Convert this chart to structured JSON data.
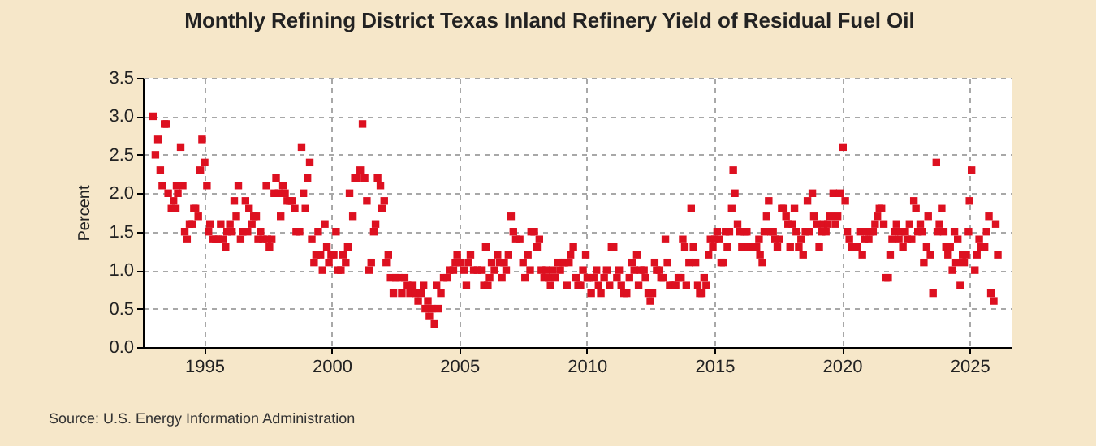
{
  "chart_data": {
    "type": "scatter",
    "title": "Monthly Refining District Texas Inland Refinery Yield of Residual Fuel Oil",
    "ylabel": "Percent",
    "annotations": [
      "Source: U.S. Energy Information Administration"
    ],
    "x": [
      1993.0,
      1993.09,
      1993.19,
      1993.28,
      1993.36,
      1993.45,
      1993.53,
      1993.59,
      1993.72,
      1993.8,
      1993.89,
      1993.92,
      1993.97,
      1994.08,
      1994.16,
      1994.24,
      1994.33,
      1994.43,
      1994.54,
      1994.6,
      1994.66,
      1994.77,
      1994.85,
      1994.92,
      1995.02,
      1995.11,
      1995.17,
      1995.23,
      1995.36,
      1995.46,
      1995.57,
      1995.65,
      1995.74,
      1995.84,
      1995.9,
      1996.01,
      1996.09,
      1996.18,
      1996.26,
      1996.34,
      1996.43,
      1996.51,
      1996.62,
      1996.7,
      1996.76,
      1996.87,
      1996.95,
      1997.04,
      1997.12,
      1997.21,
      1997.31,
      1997.44,
      1997.48,
      1997.56,
      1997.65,
      1997.75,
      1997.82,
      1997.92,
      1998.0,
      1998.09,
      1998.17,
      1998.26,
      1998.36,
      1998.45,
      1998.55,
      1998.61,
      1998.74,
      1998.82,
      1998.89,
      1998.97,
      1999.05,
      1999.14,
      1999.22,
      1999.31,
      1999.39,
      1999.47,
      1999.56,
      1999.64,
      1999.73,
      1999.81,
      1999.89,
      1999.98,
      2000.08,
      2000.17,
      2000.25,
      2000.36,
      2000.44,
      2000.55,
      2000.63,
      2000.7,
      2000.83,
      2000.91,
      2001.0,
      2001.12,
      2001.21,
      2001.29,
      2001.38,
      2001.46,
      2001.55,
      2001.65,
      2001.72,
      2001.8,
      2001.91,
      2001.97,
      2002.06,
      2002.14,
      2002.22,
      2002.31,
      2002.42,
      2002.52,
      2002.65,
      2002.75,
      2002.86,
      2002.97,
      2003.07,
      2003.18,
      2003.28,
      2003.39,
      2003.5,
      2003.6,
      2003.67,
      2003.77,
      2003.83,
      2003.92,
      2004.03,
      2004.11,
      2004.19,
      2004.28,
      2004.39,
      2004.53,
      2004.62,
      2004.77,
      2004.85,
      2004.92,
      2005.02,
      2005.19,
      2005.28,
      2005.36,
      2005.44,
      2005.57,
      2005.72,
      2005.89,
      2005.97,
      2006.04,
      2006.12,
      2006.19,
      2006.27,
      2006.38,
      2006.5,
      2006.59,
      2006.67,
      2006.76,
      2006.84,
      2006.93,
      2007.03,
      2007.12,
      2007.22,
      2007.37,
      2007.5,
      2007.58,
      2007.69,
      2007.78,
      2007.82,
      2007.94,
      2008.05,
      2008.14,
      2008.22,
      2008.33,
      2008.41,
      2008.5,
      2008.58,
      2008.67,
      2008.77,
      2008.88,
      2008.96,
      2009.05,
      2009.13,
      2009.22,
      2009.3,
      2009.36,
      2009.47,
      2009.58,
      2009.66,
      2009.75,
      2009.85,
      2009.96,
      2010.02,
      2010.08,
      2010.17,
      2010.27,
      2010.38,
      2010.46,
      2010.55,
      2010.68,
      2010.78,
      2010.89,
      2010.97,
      2011.05,
      2011.18,
      2011.27,
      2011.35,
      2011.46,
      2011.56,
      2011.67,
      2011.77,
      2011.86,
      2011.96,
      2012.03,
      2012.11,
      2012.24,
      2012.3,
      2012.41,
      2012.49,
      2012.57,
      2012.66,
      2012.74,
      2012.85,
      2012.91,
      2013.0,
      2013.08,
      2013.16,
      2013.25,
      2013.38,
      2013.48,
      2013.59,
      2013.69,
      2013.76,
      2013.84,
      2013.9,
      2014.01,
      2014.09,
      2014.18,
      2014.26,
      2014.35,
      2014.43,
      2014.51,
      2014.6,
      2014.68,
      2014.77,
      2014.85,
      2014.94,
      2015.02,
      2015.11,
      2015.19,
      2015.27,
      2015.36,
      2015.44,
      2015.51,
      2015.59,
      2015.68,
      2015.74,
      2015.8,
      2015.91,
      2015.99,
      2016.08,
      2016.18,
      2016.27,
      2016.35,
      2016.43,
      2016.54,
      2016.65,
      2016.75,
      2016.79,
      2016.88,
      2016.96,
      2017.05,
      2017.13,
      2017.22,
      2017.3,
      2017.38,
      2017.47,
      2017.55,
      2017.64,
      2017.72,
      2017.81,
      2017.89,
      2017.97,
      2018.06,
      2018.14,
      2018.21,
      2018.31,
      2018.4,
      2018.48,
      2018.57,
      2018.65,
      2018.73,
      2018.84,
      2018.9,
      2019.01,
      2019.11,
      2019.2,
      2019.28,
      2019.37,
      2019.45,
      2019.54,
      2019.66,
      2019.75,
      2019.83,
      2019.92,
      2020.04,
      2020.13,
      2020.21,
      2020.29,
      2020.38,
      2020.46,
      2020.59,
      2020.71,
      2020.8,
      2020.88,
      2020.97,
      2021.05,
      2021.13,
      2021.22,
      2021.3,
      2021.39,
      2021.47,
      2021.55,
      2021.64,
      2021.72,
      2021.81,
      2021.89,
      2021.97,
      2022.06,
      2022.14,
      2022.23,
      2022.31,
      2022.39,
      2022.48,
      2022.56,
      2022.65,
      2022.73,
      2022.82,
      2022.9,
      2022.98,
      2023.07,
      2023.15,
      2023.21,
      2023.32,
      2023.38,
      2023.47,
      2023.57,
      2023.7,
      2023.74,
      2023.82,
      2023.91,
      2023.99,
      2024.08,
      2024.16,
      2024.24,
      2024.33,
      2024.41,
      2024.47,
      2024.54,
      2024.64,
      2024.73,
      2024.79,
      2024.87,
      2024.96,
      2025.0,
      2025.08,
      2025.21,
      2025.29,
      2025.38,
      2025.46,
      2025.59,
      2025.67,
      2025.76,
      2025.84,
      2025.95,
      2026.03,
      2026.11
    ],
    "series": [
      {
        "color": "#dd1020",
        "values": [
          3.0,
          2.5,
          2.7,
          2.3,
          2.1,
          2.9,
          2.9,
          2.0,
          1.8,
          1.9,
          1.8,
          2.1,
          2.0,
          2.6,
          2.1,
          1.5,
          1.4,
          1.6,
          1.6,
          1.8,
          1.8,
          1.7,
          2.3,
          2.7,
          2.4,
          2.1,
          1.5,
          1.6,
          1.4,
          1.4,
          1.4,
          1.6,
          1.4,
          1.3,
          1.5,
          1.6,
          1.5,
          1.9,
          1.7,
          2.1,
          1.4,
          1.5,
          1.9,
          1.5,
          1.8,
          1.6,
          1.7,
          1.7,
          1.4,
          1.5,
          1.4,
          2.1,
          1.4,
          1.3,
          1.4,
          2.0,
          2.2,
          2.0,
          1.7,
          2.1,
          2.0,
          1.9,
          1.9,
          1.9,
          1.8,
          1.5,
          1.5,
          2.6,
          2.0,
          1.8,
          2.2,
          2.4,
          1.4,
          1.1,
          1.2,
          1.5,
          1.2,
          1.0,
          1.6,
          1.3,
          1.1,
          1.2,
          1.2,
          1.5,
          1.0,
          1.0,
          1.2,
          1.1,
          1.3,
          2.0,
          1.7,
          2.2,
          2.2,
          2.3,
          2.9,
          2.2,
          1.9,
          1.0,
          1.1,
          1.5,
          1.6,
          2.2,
          2.1,
          1.8,
          1.9,
          1.1,
          1.2,
          0.9,
          0.7,
          0.9,
          0.9,
          0.7,
          0.9,
          0.8,
          0.7,
          0.8,
          0.7,
          0.6,
          0.7,
          0.8,
          0.5,
          0.6,
          0.4,
          0.5,
          0.3,
          0.8,
          0.5,
          0.7,
          0.9,
          0.9,
          1.0,
          1.0,
          1.1,
          1.2,
          1.1,
          1.0,
          0.8,
          1.1,
          1.2,
          1.0,
          1.0,
          1.0,
          0.8,
          1.3,
          0.8,
          0.9,
          1.1,
          1.0,
          1.2,
          1.1,
          0.9,
          1.1,
          1.0,
          1.2,
          1.7,
          1.5,
          1.4,
          1.4,
          1.1,
          0.9,
          1.2,
          1.0,
          1.5,
          1.5,
          1.3,
          1.4,
          1.0,
          0.9,
          1.0,
          0.9,
          0.8,
          1.0,
          0.9,
          1.1,
          1.0,
          1.1,
          1.1,
          0.8,
          1.1,
          1.2,
          1.3,
          0.9,
          0.8,
          0.8,
          1.0,
          1.2,
          0.9,
          0.9,
          0.7,
          0.9,
          1.0,
          0.8,
          0.7,
          0.9,
          1.0,
          0.8,
          1.3,
          1.3,
          0.9,
          1.0,
          0.8,
          0.7,
          0.7,
          0.9,
          1.1,
          1.0,
          1.2,
          0.8,
          1.0,
          1.0,
          0.9,
          0.7,
          0.6,
          0.7,
          1.1,
          1.0,
          1.0,
          0.9,
          0.9,
          1.4,
          1.1,
          0.8,
          0.8,
          0.8,
          0.9,
          0.9,
          1.4,
          1.3,
          0.8,
          1.1,
          1.8,
          1.3,
          1.1,
          0.8,
          0.7,
          0.7,
          0.9,
          0.8,
          1.2,
          1.4,
          1.3,
          1.4,
          1.5,
          1.4,
          1.1,
          1.1,
          1.5,
          1.3,
          1.5,
          1.8,
          2.3,
          2.0,
          1.6,
          1.5,
          1.3,
          1.5,
          1.5,
          1.3,
          1.3,
          1.3,
          1.3,
          1.4,
          1.2,
          1.1,
          1.5,
          1.7,
          1.9,
          1.5,
          1.5,
          1.4,
          1.3,
          1.4,
          1.8,
          1.8,
          1.7,
          1.6,
          1.3,
          1.6,
          1.8,
          1.5,
          1.3,
          1.4,
          1.2,
          1.5,
          1.9,
          1.5,
          2.0,
          1.7,
          1.6,
          1.3,
          1.5,
          1.6,
          1.5,
          1.6,
          1.7,
          2.0,
          1.6,
          1.7,
          2.0,
          2.6,
          1.9,
          1.5,
          1.4,
          1.3,
          1.3,
          1.3,
          1.5,
          1.2,
          1.4,
          1.5,
          1.4,
          1.5,
          1.5,
          1.6,
          1.7,
          1.8,
          1.8,
          1.6,
          0.9,
          0.9,
          1.2,
          1.4,
          1.5,
          1.6,
          1.4,
          1.5,
          1.3,
          1.5,
          1.4,
          1.6,
          1.4,
          1.9,
          1.8,
          1.5,
          1.6,
          1.5,
          1.1,
          1.3,
          1.7,
          1.2,
          0.7,
          2.4,
          1.5,
          1.6,
          1.8,
          1.5,
          1.3,
          1.2,
          1.3,
          1.0,
          1.5,
          1.1,
          1.4,
          0.8,
          1.2,
          1.1,
          1.2,
          1.5,
          1.9,
          2.3,
          1.0,
          1.2,
          1.4,
          1.3,
          1.3,
          1.5,
          1.7,
          0.7,
          0.6,
          1.6,
          1.2
        ]
      }
    ],
    "xlim": [
      1992.6,
      2026.65
    ],
    "ylim": [
      0,
      3.5
    ],
    "xticks": [
      1995,
      2000,
      2005,
      2010,
      2015,
      2020,
      2025
    ],
    "yticks": [
      {
        "value": 0,
        "label": "0.0"
      },
      {
        "value": 0.5,
        "label": "0.5"
      },
      {
        "value": 1,
        "label": "1.0"
      },
      {
        "value": 1.5,
        "label": "1.5"
      },
      {
        "value": 2,
        "label": "2.0"
      },
      {
        "value": 2.5,
        "label": "2.5"
      },
      {
        "value": 3,
        "label": "3.0"
      },
      {
        "value": 3.5,
        "label": "3.5"
      }
    ],
    "grid": true,
    "marker": "square"
  }
}
